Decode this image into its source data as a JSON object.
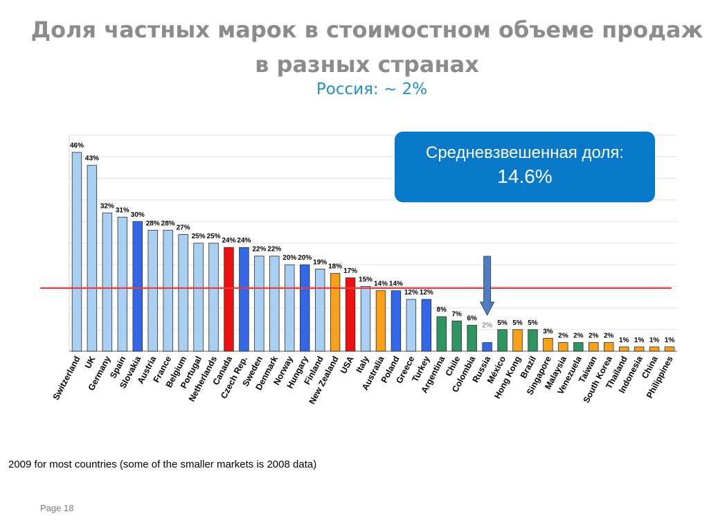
{
  "title": "Доля частных марок в стоимостном объеме продаж в разных странах",
  "subtitle": "Россия: ~ 2%",
  "callout": {
    "label": "Средневзвешенная доля:",
    "value": "14.6%"
  },
  "footnote": "2009 for most countries (some of the smaller markets is 2008 data)",
  "page_label": "Page 18",
  "colors": {
    "light_blue": "#a9cff2",
    "blue": "#3467e8",
    "red": "#ee1111",
    "orange": "#f7a11a",
    "green": "#2e9460",
    "average_line": "#ee3b3b",
    "arrow": "#4f7dc0"
  },
  "chart_data": {
    "type": "bar",
    "title": "",
    "xlabel": "",
    "ylabel": "",
    "ylim": [
      0,
      50
    ],
    "grid": true,
    "categories": [
      "Switzerland",
      "UK",
      "Germany",
      "Spain",
      "Slovakia",
      "Austria",
      "France",
      "Belgium",
      "Portugal",
      "Netherlands",
      "Canada",
      "Czech Rep.",
      "Sweden",
      "Denmark",
      "Norway",
      "Hungary",
      "Finland",
      "New Zealand",
      "USA",
      "Italy",
      "Australia",
      "Poland",
      "Greece",
      "Turkey",
      "Argentina",
      "Chile",
      "Colombia",
      "Russia",
      "México",
      "Hong Kong",
      "Brazil",
      "Singapore",
      "Malaysia",
      "Venezuela",
      "Taiwan",
      "South Korea",
      "Thailand",
      "Indonesia",
      "China",
      "Philippines"
    ],
    "values": [
      46,
      43,
      32,
      31,
      30,
      28,
      28,
      27,
      25,
      25,
      24,
      24,
      22,
      22,
      20,
      20,
      19,
      18,
      17,
      15,
      14,
      14,
      12,
      12,
      8,
      7,
      6,
      2,
      5,
      5,
      5,
      3,
      2,
      2,
      2,
      2,
      1,
      1,
      1,
      1
    ],
    "labels": [
      "46%",
      "43%",
      "32%",
      "31%",
      "30%",
      "28%",
      "28%",
      "27%",
      "25%",
      "25%",
      "24%",
      "24%",
      "22%",
      "22%",
      "20%",
      "20%",
      "19%",
      "18%",
      "17%",
      "15%",
      "14%",
      "14%",
      "12%",
      "12%",
      "8%",
      "7%",
      "6%",
      "2%",
      "5%",
      "5%",
      "5%",
      "3%",
      "2%",
      "2%",
      "2%",
      "2%",
      "1%",
      "1%",
      "1%",
      "1%"
    ],
    "bar_colors": [
      "light_blue",
      "light_blue",
      "light_blue",
      "light_blue",
      "blue",
      "light_blue",
      "light_blue",
      "light_blue",
      "light_blue",
      "light_blue",
      "red",
      "blue",
      "light_blue",
      "light_blue",
      "light_blue",
      "blue",
      "light_blue",
      "orange",
      "red",
      "light_blue",
      "orange",
      "blue",
      "light_blue",
      "blue",
      "green",
      "green",
      "green",
      "blue",
      "green",
      "orange",
      "green",
      "orange",
      "orange",
      "green",
      "orange",
      "orange",
      "orange",
      "orange",
      "orange",
      "orange"
    ],
    "average_line": 14.6,
    "highlight": "Russia"
  }
}
